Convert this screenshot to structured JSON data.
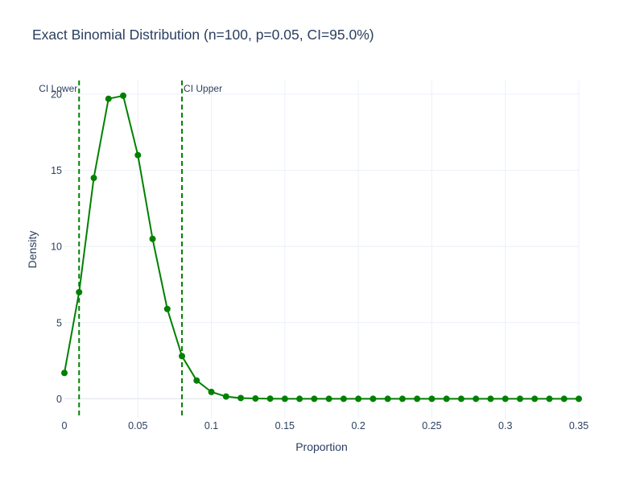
{
  "chart_data": {
    "type": "line",
    "title": "Exact Binomial Distribution (n=100, p=0.05, CI=95.0%)",
    "xlabel": "Proportion",
    "ylabel": "Density",
    "xlim": [
      0,
      0.35
    ],
    "ylim": [
      -1.3,
      20.9
    ],
    "x_ticks": [
      0,
      0.05,
      0.1,
      0.15,
      0.2,
      0.25,
      0.3,
      0.35
    ],
    "x_tick_labels": [
      "0",
      "0.05",
      "0.1",
      "0.15",
      "0.2",
      "0.25",
      "0.3",
      "0.35"
    ],
    "y_ticks": [
      0,
      5,
      10,
      15,
      20
    ],
    "y_tick_labels": [
      "0",
      "5",
      "10",
      "15",
      "20"
    ],
    "grid": true,
    "line_color": "#008000",
    "series": [
      {
        "x": [
          0,
          0.01,
          0.02,
          0.03,
          0.04,
          0.05,
          0.06,
          0.07,
          0.08,
          0.09,
          0.1,
          0.11,
          0.12,
          0.13,
          0.14,
          0.15,
          0.16,
          0.17,
          0.18,
          0.19,
          0.2,
          0.21,
          0.22,
          0.23,
          0.24,
          0.25,
          0.26,
          0.27,
          0.28,
          0.29,
          0.3,
          0.31,
          0.32,
          0.33,
          0.34,
          0.35
        ],
        "y": [
          1.7,
          7.0,
          14.5,
          19.7,
          19.9,
          16.0,
          10.5,
          5.9,
          2.8,
          1.2,
          0.45,
          0.15,
          0.05,
          0.02,
          0.01,
          0,
          0,
          0,
          0,
          0,
          0,
          0,
          0,
          0,
          0,
          0,
          0,
          0,
          0,
          0,
          0,
          0,
          0,
          0,
          0,
          0
        ]
      }
    ],
    "vlines": [
      {
        "label": "CI Lower",
        "x": 0.01
      },
      {
        "label": "CI Upper",
        "x": 0.08
      }
    ]
  }
}
